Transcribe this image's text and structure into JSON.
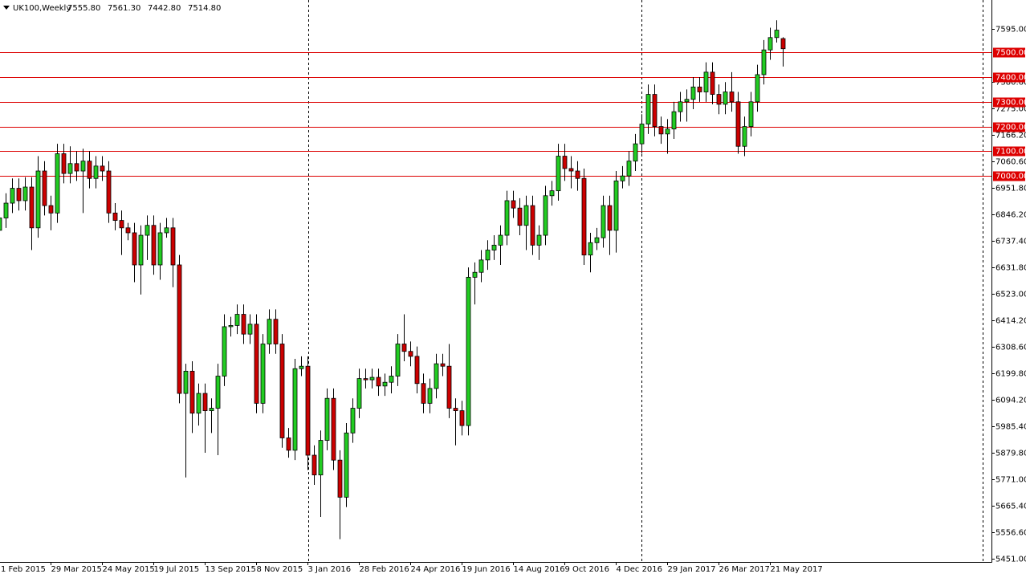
{
  "chart_data": {
    "type": "candlestick",
    "title": "UK100,Weekly",
    "ohlc_labels": [
      "7555.80",
      "7561.30",
      "7442.80",
      "7514.80"
    ],
    "up_color": "#22cc22",
    "down_color": "#cc0000",
    "open": [
      6780,
      6830,
      6890,
      6950,
      6900,
      6955,
      6790,
      7020,
      6880,
      6850,
      7090,
      7010,
      7050,
      7020,
      7060,
      6990,
      7040,
      7020,
      6850,
      6820,
      6790,
      6770,
      6640,
      6760,
      6800,
      6640,
      6770,
      6790,
      6640,
      6120,
      6210,
      6040,
      6120,
      6050,
      6060,
      6190,
      6390,
      6395,
      6440,
      6360,
      6400,
      6080,
      6320,
      6420,
      6320,
      5940,
      5890,
      6220,
      6230,
      5870,
      5790,
      5930,
      6100,
      5850,
      5700,
      5960,
      6060,
      6180,
      6175,
      6185,
      6150,
      6165,
      6190,
      6320,
      6290,
      6270,
      6160,
      6080,
      6140,
      6240,
      6230,
      6060,
      6050,
      5990,
      6590,
      6610,
      6660,
      6700,
      6720,
      6760,
      6900,
      6870,
      6800,
      6880,
      6720,
      6760,
      6920,
      6940,
      7080,
      7030,
      7020,
      6990,
      6680,
      6730,
      6750,
      6880,
      6780,
      6980,
      7000,
      7060,
      7130,
      7210,
      7330,
      7200,
      7170,
      7190,
      7260,
      7300,
      7310,
      7360,
      7340,
      7420,
      7330,
      7290,
      7340,
      7300,
      7120,
      7200,
      7300,
      7410,
      7510,
      7560,
      7555.8
    ],
    "high": [
      6870,
      6930,
      6990,
      6990,
      6995,
      6995,
      7080,
      7060,
      6920,
      7130,
      7130,
      7120,
      7100,
      7110,
      7100,
      7080,
      7080,
      7060,
      6890,
      6860,
      6810,
      6810,
      6800,
      6840,
      6840,
      6810,
      6830,
      6830,
      6680,
      6240,
      6250,
      6160,
      6160,
      6100,
      6240,
      6440,
      6430,
      6480,
      6480,
      6440,
      6440,
      6360,
      6460,
      6460,
      6360,
      5980,
      6260,
      6270,
      6270,
      5910,
      5970,
      6140,
      6140,
      5890,
      6000,
      6100,
      6220,
      6220,
      6220,
      6220,
      6200,
      6230,
      6360,
      6440,
      6330,
      6310,
      6200,
      6180,
      6280,
      6280,
      6320,
      6100,
      6090,
      6630,
      6650,
      6700,
      6740,
      6760,
      6800,
      6940,
      6940,
      6910,
      6920,
      6920,
      6800,
      6960,
      6980,
      7130,
      7130,
      7080,
      7060,
      7030,
      6770,
      6790,
      6920,
      6920,
      7020,
      7040,
      7100,
      7170,
      7250,
      7370,
      7370,
      7240,
      7230,
      7300,
      7340,
      7350,
      7400,
      7400,
      7460,
      7460,
      7370,
      7380,
      7420,
      7340,
      7240,
      7340,
      7450,
      7550,
      7600,
      7630,
      7561.3
    ],
    "low": [
      6740,
      6790,
      6850,
      6860,
      6860,
      6700,
      6750,
      6840,
      6780,
      6810,
      6970,
      6970,
      6980,
      6850,
      6950,
      6950,
      6980,
      6810,
      6780,
      6680,
      6740,
      6570,
      6520,
      6660,
      6600,
      6580,
      6750,
      6550,
      6080,
      5780,
      5960,
      5990,
      5880,
      5960,
      5870,
      6150,
      6350,
      6360,
      6320,
      6320,
      6040,
      6040,
      6280,
      6280,
      5900,
      5860,
      5850,
      6190,
      5810,
      5750,
      5620,
      5890,
      5810,
      5530,
      5660,
      5920,
      6020,
      6140,
      6140,
      6110,
      6110,
      6120,
      6150,
      6250,
      6230,
      6120,
      6040,
      6040,
      6100,
      6190,
      6020,
      5910,
      5950,
      5950,
      6480,
      6570,
      6620,
      6660,
      6640,
      6720,
      6830,
      6760,
      6700,
      6680,
      6660,
      6720,
      6880,
      6900,
      6980,
      6950,
      6940,
      6640,
      6610,
      6700,
      6710,
      6680,
      6690,
      6950,
      6960,
      7020,
      7090,
      7170,
      7160,
      7130,
      7090,
      7150,
      7220,
      7220,
      7270,
      7300,
      7300,
      7290,
      7250,
      7250,
      7260,
      7090,
      7080,
      7160,
      7260,
      7370,
      7470,
      7540,
      7442.8
    ],
    "close": [
      6830,
      6890,
      6950,
      6900,
      6955,
      6790,
      7020,
      6880,
      6850,
      7090,
      7010,
      7050,
      7020,
      7060,
      6990,
      7040,
      7020,
      6850,
      6820,
      6790,
      6770,
      6640,
      6760,
      6800,
      6640,
      6770,
      6790,
      6640,
      6120,
      6210,
      6040,
      6120,
      6050,
      6060,
      6190,
      6390,
      6395,
      6440,
      6360,
      6400,
      6080,
      6320,
      6420,
      6320,
      5940,
      5890,
      6220,
      6230,
      5870,
      5790,
      5930,
      6100,
      5850,
      5700,
      5960,
      6060,
      6180,
      6175,
      6185,
      6150,
      6165,
      6190,
      6320,
      6290,
      6270,
      6160,
      6080,
      6140,
      6240,
      6230,
      6060,
      6050,
      5990,
      6590,
      6610,
      6660,
      6700,
      6720,
      6760,
      6900,
      6870,
      6800,
      6880,
      6720,
      6760,
      6920,
      6940,
      7080,
      7030,
      7020,
      6990,
      6680,
      6730,
      6750,
      6880,
      6780,
      6980,
      7000,
      7060,
      7130,
      7210,
      7330,
      7200,
      7170,
      7190,
      7260,
      7300,
      7310,
      7360,
      7340,
      7420,
      7330,
      7290,
      7340,
      7300,
      7120,
      7200,
      7300,
      7410,
      7510,
      7560,
      7590,
      7514.8
    ],
    "ylim": [
      5438,
      7712
    ],
    "yticks": [
      {
        "value": 7595,
        "label": "7595.00"
      },
      {
        "value": 7380.6,
        "label": "7380.60"
      },
      {
        "value": 7275,
        "label": "7275.00"
      },
      {
        "value": 7166.2,
        "label": "7166.20"
      },
      {
        "value": 7060.6,
        "label": "7060.60"
      },
      {
        "value": 6951.8,
        "label": "6951.80"
      },
      {
        "value": 6846.2,
        "label": "6846.20"
      },
      {
        "value": 6737.4,
        "label": "6737.40"
      },
      {
        "value": 6631.8,
        "label": "6631.80"
      },
      {
        "value": 6523,
        "label": "6523.00"
      },
      {
        "value": 6414.2,
        "label": "6414.20"
      },
      {
        "value": 6308.6,
        "label": "6308.60"
      },
      {
        "value": 6199.8,
        "label": "6199.80"
      },
      {
        "value": 6094.2,
        "label": "6094.20"
      },
      {
        "value": 5985.4,
        "label": "5985.40"
      },
      {
        "value": 5879.8,
        "label": "5879.80"
      },
      {
        "value": 5771,
        "label": "5771.00"
      },
      {
        "value": 5665.4,
        "label": "5665.40"
      },
      {
        "value": 5556.6,
        "label": "5556.60"
      },
      {
        "value": 5451,
        "label": "5451.00"
      }
    ],
    "xticks": [
      {
        "value": 0,
        "label": "1 Feb 2015"
      },
      {
        "value": 8,
        "label": "29 Mar 2015"
      },
      {
        "value": 16,
        "label": "24 May 2015"
      },
      {
        "value": 24,
        "label": "19 Jul 2015"
      },
      {
        "value": 32,
        "label": "13 Sep 2015"
      },
      {
        "value": 40,
        "label": "8 Nov 2015"
      },
      {
        "value": 48,
        "label": "3 Jan 2016"
      },
      {
        "value": 56,
        "label": "28 Feb 2016"
      },
      {
        "value": 64,
        "label": "24 Apr 2016"
      },
      {
        "value": 72,
        "label": "19 Jun 2016"
      },
      {
        "value": 80,
        "label": "14 Aug 2016"
      },
      {
        "value": 88,
        "label": "9 Oct 2016"
      },
      {
        "value": 96,
        "label": "4 Dec 2016"
      },
      {
        "value": 104,
        "label": "29 Jan 2017"
      },
      {
        "value": 112,
        "label": "26 Mar 2017"
      },
      {
        "value": 120,
        "label": "21 May 2017"
      }
    ],
    "levels": [
      {
        "value": 7500,
        "label": "7500.00"
      },
      {
        "value": 7400,
        "label": "7400.00"
      },
      {
        "value": 7300,
        "label": "7300.00"
      },
      {
        "value": 7200,
        "label": "7200.00"
      },
      {
        "value": 7100,
        "label": "7100.00"
      },
      {
        "value": 7000,
        "label": "7000.00"
      }
    ],
    "level_color": "#dd0000"
  }
}
